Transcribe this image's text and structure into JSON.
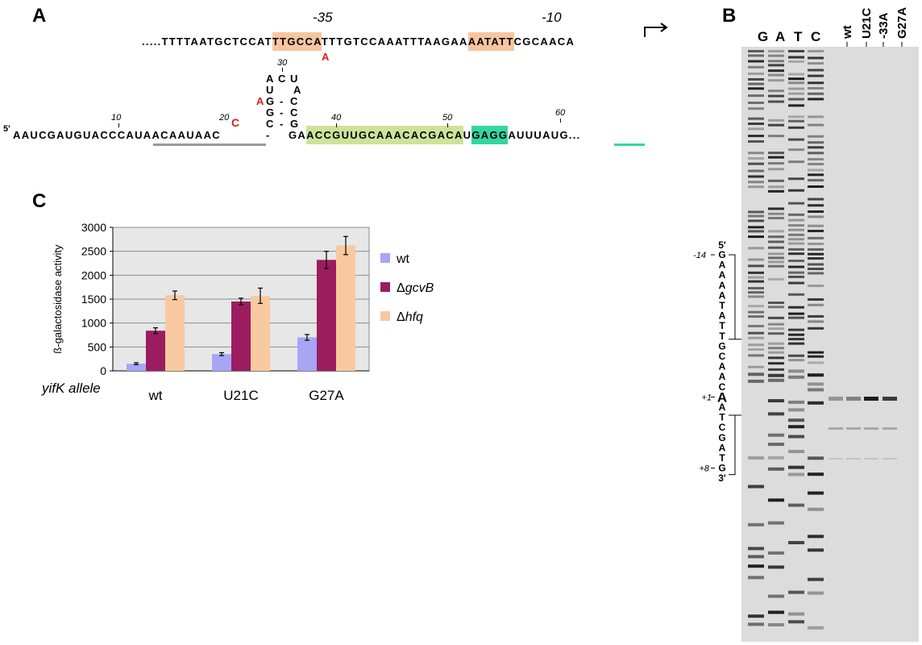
{
  "panels": {
    "a": "A",
    "b": "B",
    "c": "C"
  },
  "panel_a": {
    "promoter_seq": ".....TTTTAATGCTCCATTTGCCATTTGTCCAAATTTAAGAAAATATTCGCAACA",
    "promoter_prefix": ".....TTTTAATGCTCCAT",
    "box35": "TTGCCA",
    "promoter_mid": "TTTGTCCAAATTTAAGAA",
    "box10": "AATATT",
    "promoter_suffix": "CGCAACA",
    "label_35": "-35",
    "label_10": "-10",
    "mut_35": "A",
    "five_prime": "5'",
    "mrna_prefix": "AAUCGAUGUACCC",
    "mrna_gray": "AUAACAAUAAC",
    "mrna_after_stem": "GA",
    "mrna_green": "ACCGUUGCAAACACGACA",
    "mrna_u": "U",
    "mrna_teal": "GAGG",
    "mrna_suffix": "AUUUAUG...",
    "ticks": [
      "10",
      "20",
      "30",
      "40",
      "50",
      "60"
    ],
    "mut_u21c": "C",
    "mut_g27a": "A",
    "stem_left": [
      "U",
      "G",
      "G",
      "C"
    ],
    "stem_right": [
      "A",
      "C",
      "C",
      "G"
    ],
    "loop": [
      "A",
      "C",
      "U"
    ],
    "pair_dash": "-"
  },
  "panel_b": {
    "lanes": [
      "G",
      "A",
      "T",
      "C"
    ],
    "sample_lanes": [
      "wt",
      "U21C",
      "-33A",
      "G27A"
    ],
    "seq_5": "5'",
    "seq_3": "3'",
    "read_seq": [
      "G",
      "A",
      "A",
      "A",
      "A",
      "T",
      "A",
      "T",
      "T",
      "G",
      "C",
      "A",
      "A",
      "C",
      "A",
      "A",
      "T",
      "C",
      "G",
      "A",
      "T",
      "G"
    ],
    "pos_m14": "-14",
    "pos_p1": "+1",
    "pos_p8": "+8"
  },
  "panel_c": {
    "row_label": "yifK allele",
    "legend": [
      "wt",
      "ΔgcvB",
      "Δhfq"
    ],
    "legend_italic": [
      "",
      "gcvB",
      "hfq"
    ]
  },
  "chart_data": {
    "type": "bar",
    "ylabel": "ß-galactosidase activity",
    "xlabel": "yifK allele",
    "categories": [
      "wt",
      "U21C",
      "G27A"
    ],
    "ylim": [
      0,
      3000
    ],
    "yticks": [
      0,
      500,
      1000,
      1500,
      2000,
      2500,
      3000
    ],
    "grid": true,
    "legend_position": "right",
    "series": [
      {
        "name": "wt",
        "color": "#a6a6f5",
        "values": [
          150,
          350,
          700
        ],
        "errors": [
          20,
          30,
          60
        ]
      },
      {
        "name": "ΔgcvB",
        "color": "#9b1d5f",
        "values": [
          840,
          1450,
          2320
        ],
        "errors": [
          60,
          70,
          180
        ]
      },
      {
        "name": "Δhfq",
        "color": "#f8c9a1",
        "values": [
          1580,
          1570,
          2620
        ],
        "errors": [
          90,
          160,
          190
        ]
      }
    ]
  },
  "colors": {
    "box_orange": "#f6c69f",
    "green": "#cfe29a",
    "teal": "#34d6a1",
    "red": "#d81f1f",
    "gray_line": "#9a9a9a",
    "plot_bg": "#e7e7e7"
  }
}
